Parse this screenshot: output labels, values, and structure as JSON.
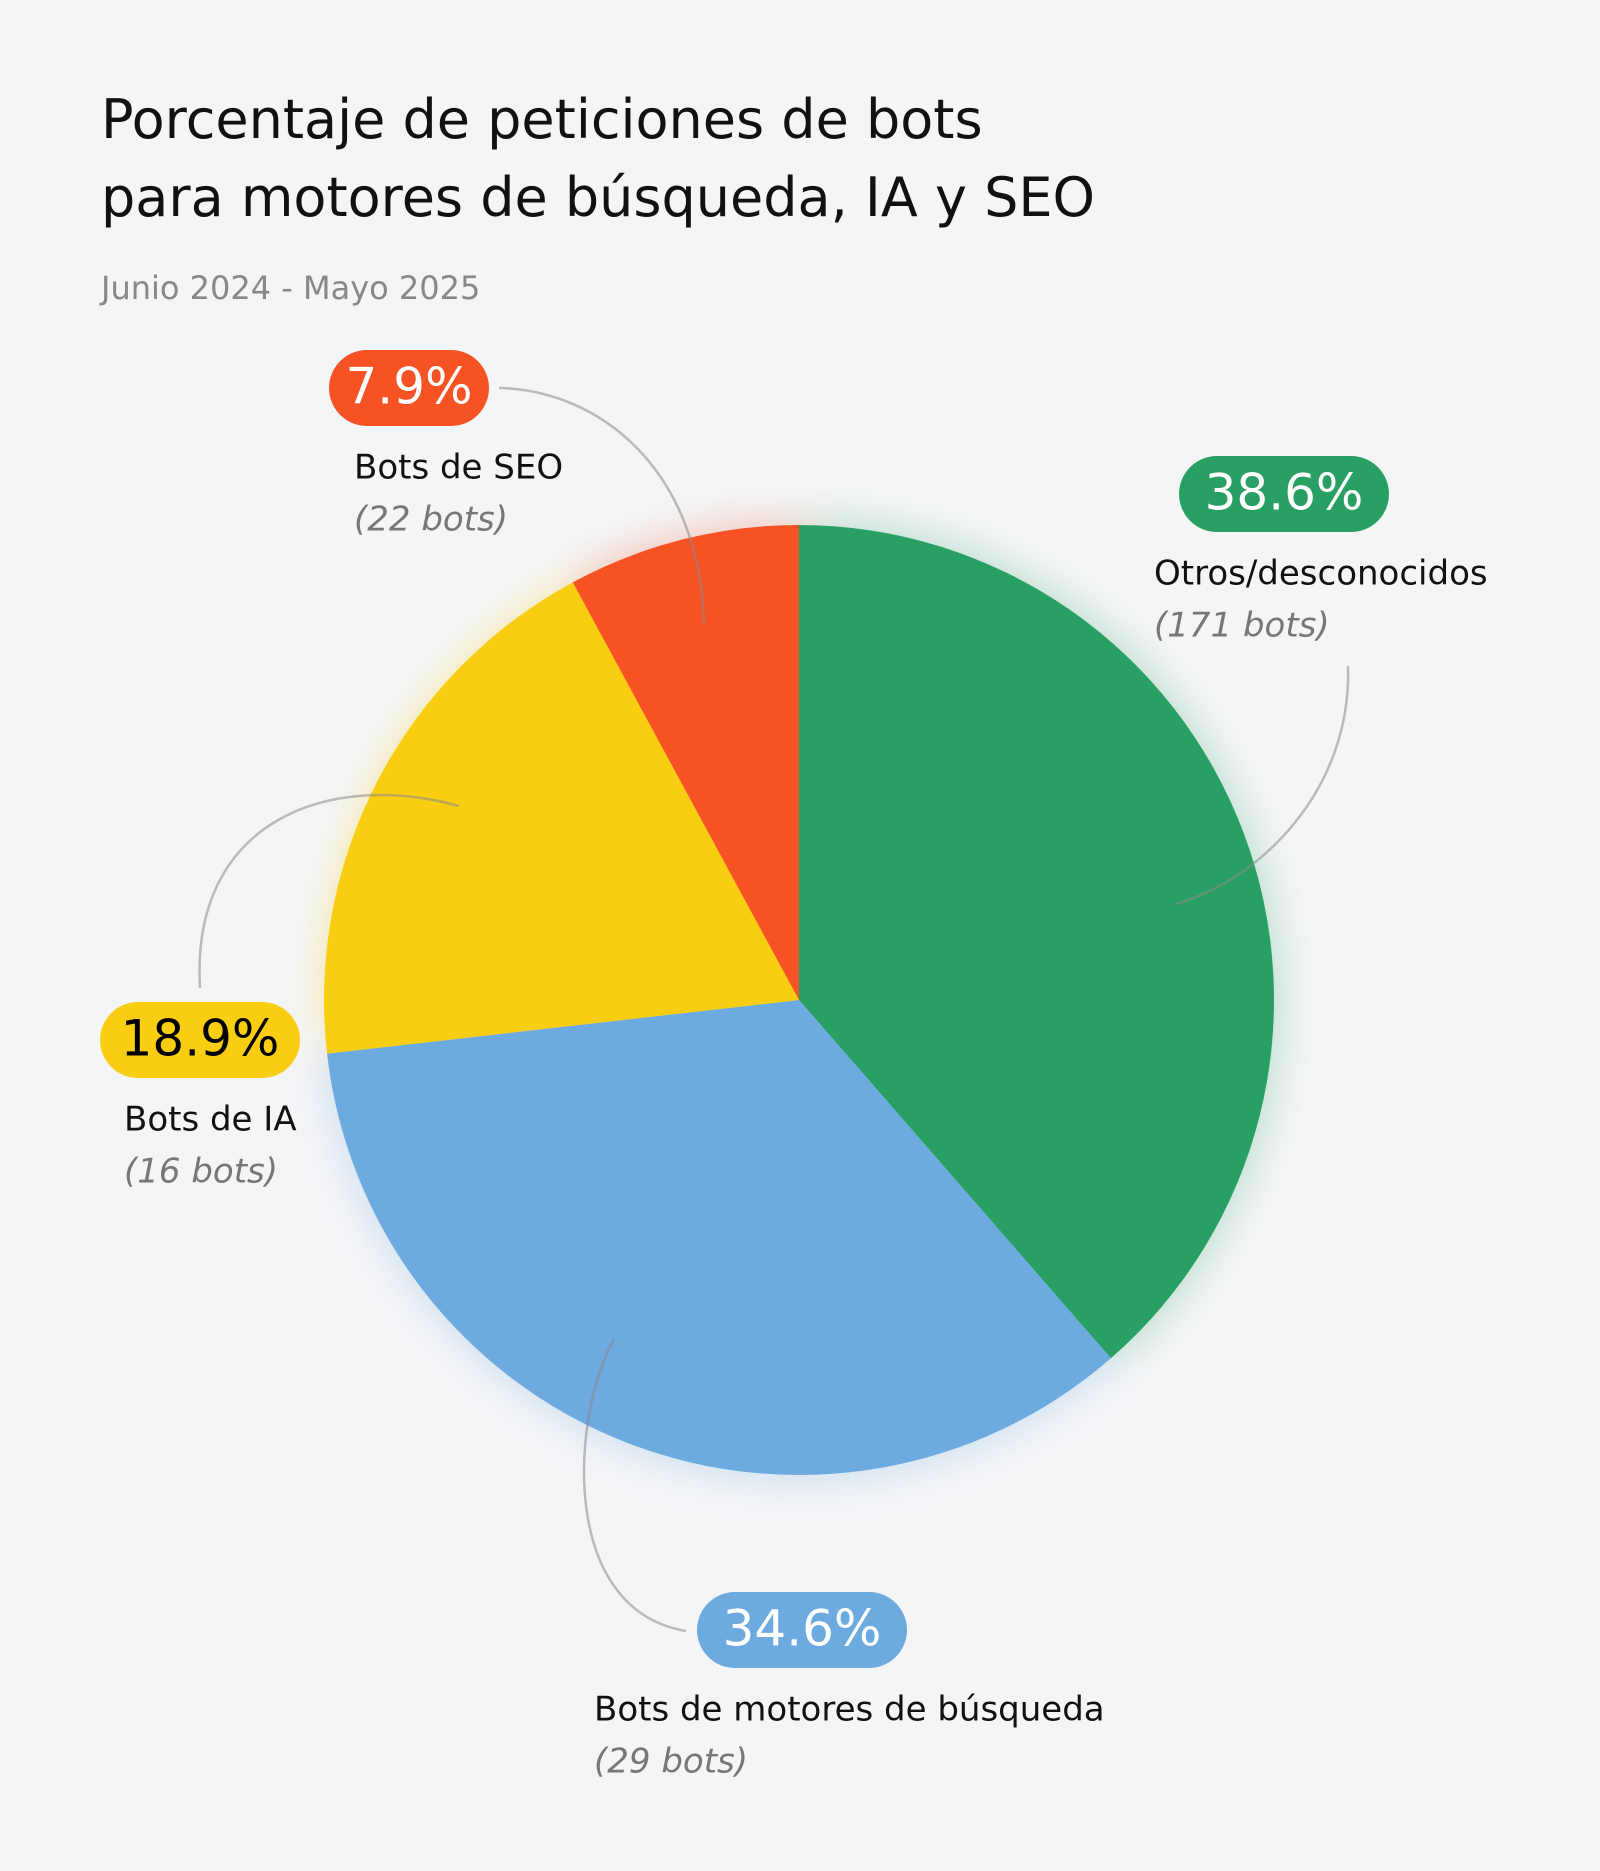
{
  "chart_data": {
    "type": "pie",
    "title": "Porcentaje de peticiones de bots para motores de búsqueda, IA y SEO",
    "subtitle": "Junio 2024 - Mayo 2025",
    "categories": [
      "Otros/desconocidos",
      "Bots de motores de búsqueda",
      "Bots de IA",
      "Bots de SEO"
    ],
    "values": [
      38.6,
      34.6,
      18.9,
      7.9
    ],
    "value_labels": [
      "38.6%",
      "34.6%",
      "18.9%",
      "7.9%"
    ],
    "details": [
      "(171 bots)",
      "(29 bots)",
      "(16 bots)",
      "(22 bots)"
    ],
    "colors": [
      "#29a063",
      "#6daae0",
      "#f9ce10",
      "#f65223"
    ],
    "label_text_colors": [
      "#ffffff",
      "#ffffff",
      "#000000",
      "#ffffff"
    ]
  }
}
